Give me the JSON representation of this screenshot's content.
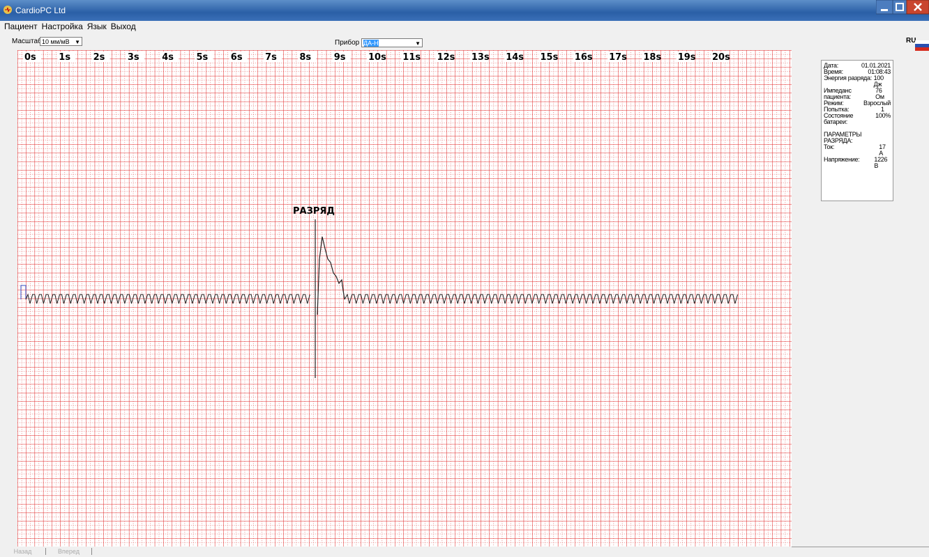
{
  "window": {
    "title": "CardioPC Ltd"
  },
  "menu": [
    "Пациент",
    "Настройка",
    "Язык",
    "Выход"
  ],
  "toolbar": {
    "scale_label": "Масштаб",
    "scale_value": "10 мм/мВ",
    "device_label": "Прибор",
    "device_value": "ДА-Н",
    "language": "RU"
  },
  "ecg": {
    "time_labels": [
      "0s",
      "1s",
      "2s",
      "3s",
      "4s",
      "5s",
      "6s",
      "7s",
      "8s",
      "9s",
      "10s",
      "11s",
      "12s",
      "13s",
      "14s",
      "15s",
      "16s",
      "17s",
      "18s",
      "19s",
      "20s"
    ],
    "event_label": "РАЗРЯД"
  },
  "info": {
    "rows": [
      {
        "label": "Дата:",
        "value": "01.01.2021"
      },
      {
        "label": "Время:",
        "value": "01:08:43"
      },
      {
        "label": "Энергия разряда:",
        "value": "100 Дж"
      },
      {
        "label": "Импеданс пациента:",
        "value": "76 Ом"
      },
      {
        "label": "Режим:",
        "value": "Взрослый"
      },
      {
        "label": "Попытка:",
        "value": "1"
      },
      {
        "label": "Состояние батареи:",
        "value": "100%"
      }
    ],
    "section_title": "ПАРАМЕТРЫ РАЗРЯДА:",
    "section_rows": [
      {
        "label": "Ток:",
        "value": "17 А"
      },
      {
        "label": "Напряжение:",
        "value": "1226 В"
      }
    ]
  },
  "nav": {
    "back": "Назад",
    "forward": "Вперед"
  }
}
